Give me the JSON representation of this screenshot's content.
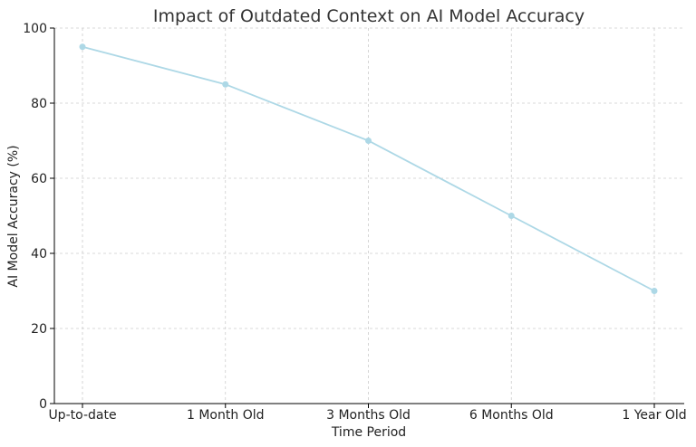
{
  "chart_data": {
    "type": "line",
    "title": "Impact of Outdated Context on AI Model Accuracy",
    "xlabel": "Time Period",
    "ylabel": "AI Model Accuracy (%)",
    "categories": [
      "Up-to-date",
      "1 Month Old",
      "3 Months Old",
      "6 Months Old",
      "1 Year Old"
    ],
    "series": [
      {
        "values": [
          95,
          85,
          70,
          50,
          30
        ],
        "color": "#add8e6"
      }
    ],
    "ylim": [
      0,
      100
    ],
    "yticks": [
      0,
      20,
      40,
      60,
      80,
      100
    ],
    "grid": true
  }
}
